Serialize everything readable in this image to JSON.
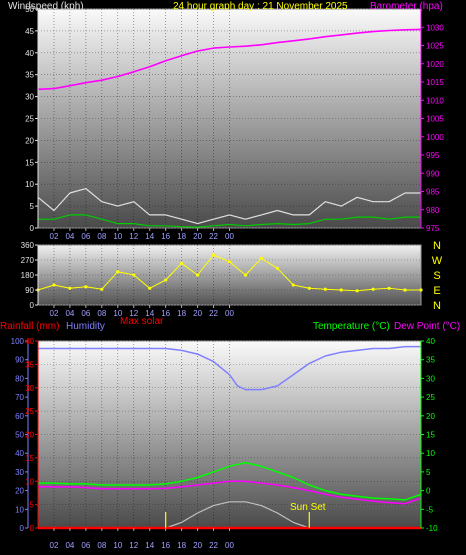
{
  "header": {
    "wind_title": "Windspeed (kph)",
    "center_title": "24 hour graph day : 21 November 2025",
    "baro_title": "Barometer (hpa)"
  },
  "labels": {
    "rain": "Rainfall (mm)",
    "humidity": "Humidity",
    "max_solar": "Max solar",
    "temperature": "Temperature (°C)",
    "dewpoint": "Dew Point (°C)",
    "sunset": "Sun Set"
  },
  "colors": {
    "wind_avg": "#00cc00",
    "wind_gust": "#e0e0e0",
    "barometer": "#ff00ff",
    "direction": "#ffff00",
    "humidity": "#8080ff",
    "temperature": "#00ff00",
    "dewpoint": "#ff00ff",
    "rain": "#ff0000",
    "solar": "#c0c0c0",
    "compass": "#ffff00"
  },
  "chart_data": [
    {
      "type": "line",
      "panel": "wind-barometer",
      "x_ticks": [
        "02",
        "04",
        "06",
        "08",
        "10",
        "12",
        "14",
        "16",
        "18",
        "20",
        "22",
        "00"
      ],
      "ylim_left": [
        0,
        50
      ],
      "y_ticks_left": [
        0,
        5,
        10,
        15,
        20,
        25,
        30,
        35,
        40,
        45,
        50
      ],
      "ylim_right": [
        975,
        1035
      ],
      "y_ticks_right": [
        975,
        980,
        985,
        990,
        995,
        1000,
        1005,
        1010,
        1015,
        1020,
        1025,
        1030
      ],
      "series": [
        {
          "name": "Barometer",
          "axis": "right",
          "x": [
            0,
            1,
            2,
            3,
            4,
            5,
            6,
            7,
            8,
            9,
            10,
            11,
            12,
            13,
            14,
            15,
            16,
            17,
            18,
            19,
            20,
            21,
            22,
            23,
            24
          ],
          "values": [
            1013,
            1013.2,
            1014,
            1014.8,
            1015.5,
            1016.5,
            1017.8,
            1019.2,
            1020.8,
            1022.2,
            1023.5,
            1024.3,
            1024.6,
            1024.8,
            1025.2,
            1025.8,
            1026.3,
            1026.8,
            1027.4,
            1027.9,
            1028.4,
            1028.8,
            1029.1,
            1029.3,
            1029.4
          ]
        },
        {
          "name": "Gust",
          "axis": "left",
          "x": [
            0,
            1,
            2,
            3,
            4,
            5,
            6,
            7,
            8,
            9,
            10,
            11,
            12,
            13,
            14,
            15,
            16,
            17,
            18,
            19,
            20,
            21,
            22,
            23,
            24
          ],
          "values": [
            7,
            4,
            8,
            9,
            6,
            5,
            6,
            3,
            3,
            2,
            1,
            2,
            3,
            2,
            3,
            4,
            3,
            3,
            6,
            5,
            7,
            6,
            6,
            8,
            8
          ]
        },
        {
          "name": "Average",
          "axis": "left",
          "x": [
            0,
            1,
            2,
            3,
            4,
            5,
            6,
            7,
            8,
            9,
            10,
            11,
            12,
            13,
            14,
            15,
            16,
            17,
            18,
            19,
            20,
            21,
            22,
            23,
            24
          ],
          "values": [
            2,
            2,
            3,
            3,
            2,
            1,
            1,
            0.5,
            0.5,
            0.3,
            0.2,
            0.5,
            0.8,
            0.5,
            0.8,
            1,
            0.8,
            1,
            2,
            2,
            2.5,
            2.5,
            2,
            2.5,
            2.5
          ]
        }
      ]
    },
    {
      "type": "scatter",
      "panel": "wind-direction",
      "x_ticks": [
        "02",
        "04",
        "06",
        "08",
        "10",
        "12",
        "14",
        "16",
        "18",
        "20",
        "22",
        "00"
      ],
      "ylim": [
        0,
        360
      ],
      "y_ticks": [
        0,
        90,
        180,
        270,
        360
      ],
      "compass": [
        "N",
        "W",
        "S",
        "E",
        "N"
      ],
      "series": [
        {
          "name": "Direction",
          "x": [
            0,
            1,
            2,
            3,
            4,
            5,
            6,
            7,
            8,
            9,
            10,
            11,
            12,
            13,
            14,
            15,
            16,
            17,
            18,
            19,
            20,
            21,
            22,
            23,
            24
          ],
          "values": [
            90,
            120,
            100,
            110,
            95,
            200,
            180,
            100,
            150,
            250,
            180,
            300,
            260,
            180,
            280,
            220,
            120,
            100,
            95,
            90,
            85,
            95,
            100,
            90,
            90
          ]
        }
      ]
    },
    {
      "type": "line",
      "panel": "temperature-humidity",
      "x_ticks": [
        "02",
        "04",
        "06",
        "08",
        "10",
        "12",
        "14",
        "16",
        "18",
        "20",
        "22",
        "00"
      ],
      "ylim_humidity": [
        0,
        100
      ],
      "y_ticks_humidity": [
        0,
        10,
        20,
        30,
        40,
        50,
        60,
        70,
        80,
        90,
        100
      ],
      "ylim_rain": [
        0,
        40
      ],
      "y_ticks_rain": [
        0,
        5,
        10,
        15,
        20,
        25,
        30,
        35,
        40
      ],
      "ylim_temp": [
        -10,
        40
      ],
      "y_ticks_temp": [
        -10,
        -5,
        0,
        5,
        10,
        15,
        20,
        25,
        30,
        35,
        40
      ],
      "series": [
        {
          "name": "Humidity",
          "axis": "humidity",
          "x": [
            0,
            1,
            2,
            3,
            4,
            5,
            6,
            7,
            8,
            9,
            10,
            11,
            12,
            12.5,
            13,
            14,
            15,
            16,
            17,
            18,
            19,
            20,
            21,
            22,
            23,
            24
          ],
          "values": [
            96,
            96,
            96,
            96,
            96,
            96,
            96,
            96,
            96,
            95,
            93,
            89,
            82,
            76,
            74,
            74,
            76,
            82,
            88,
            92,
            94,
            95,
            96,
            96,
            97,
            97
          ]
        },
        {
          "name": "Temperature",
          "axis": "temp",
          "x": [
            0,
            1,
            2,
            3,
            4,
            5,
            6,
            7,
            8,
            9,
            10,
            11,
            12,
            13,
            14,
            15,
            16,
            17,
            18,
            19,
            20,
            21,
            22,
            23,
            24
          ],
          "values": [
            2,
            2,
            1.8,
            1.8,
            1.5,
            1.5,
            1.5,
            1.5,
            1.8,
            2.5,
            3.5,
            5,
            6.5,
            7.5,
            6.5,
            5,
            3.5,
            1.5,
            0,
            -1,
            -1.5,
            -2,
            -2.2,
            -2.5,
            -1
          ]
        },
        {
          "name": "Dew Point",
          "axis": "temp",
          "x": [
            0,
            1,
            2,
            3,
            4,
            5,
            6,
            7,
            8,
            9,
            10,
            11,
            12,
            13,
            14,
            15,
            16,
            17,
            18,
            19,
            20,
            21,
            22,
            23,
            24
          ],
          "values": [
            1,
            1,
            1,
            0.8,
            0.5,
            0.5,
            0.5,
            0.5,
            0.6,
            1,
            1.5,
            2,
            2.5,
            2.5,
            2,
            1.5,
            0.8,
            0,
            -1,
            -1.8,
            -2.3,
            -2.8,
            -3.2,
            -3.5,
            -2
          ]
        },
        {
          "name": "Max solar",
          "axis": "humidity",
          "x": [
            8,
            9,
            10,
            11,
            12,
            13,
            14,
            15,
            16,
            17
          ],
          "values": [
            0,
            3,
            8,
            12,
            14,
            14,
            12,
            8,
            3,
            0
          ]
        },
        {
          "name": "Rainfall",
          "axis": "rain",
          "x": [
            0,
            24
          ],
          "values": [
            0,
            0
          ]
        }
      ]
    }
  ]
}
